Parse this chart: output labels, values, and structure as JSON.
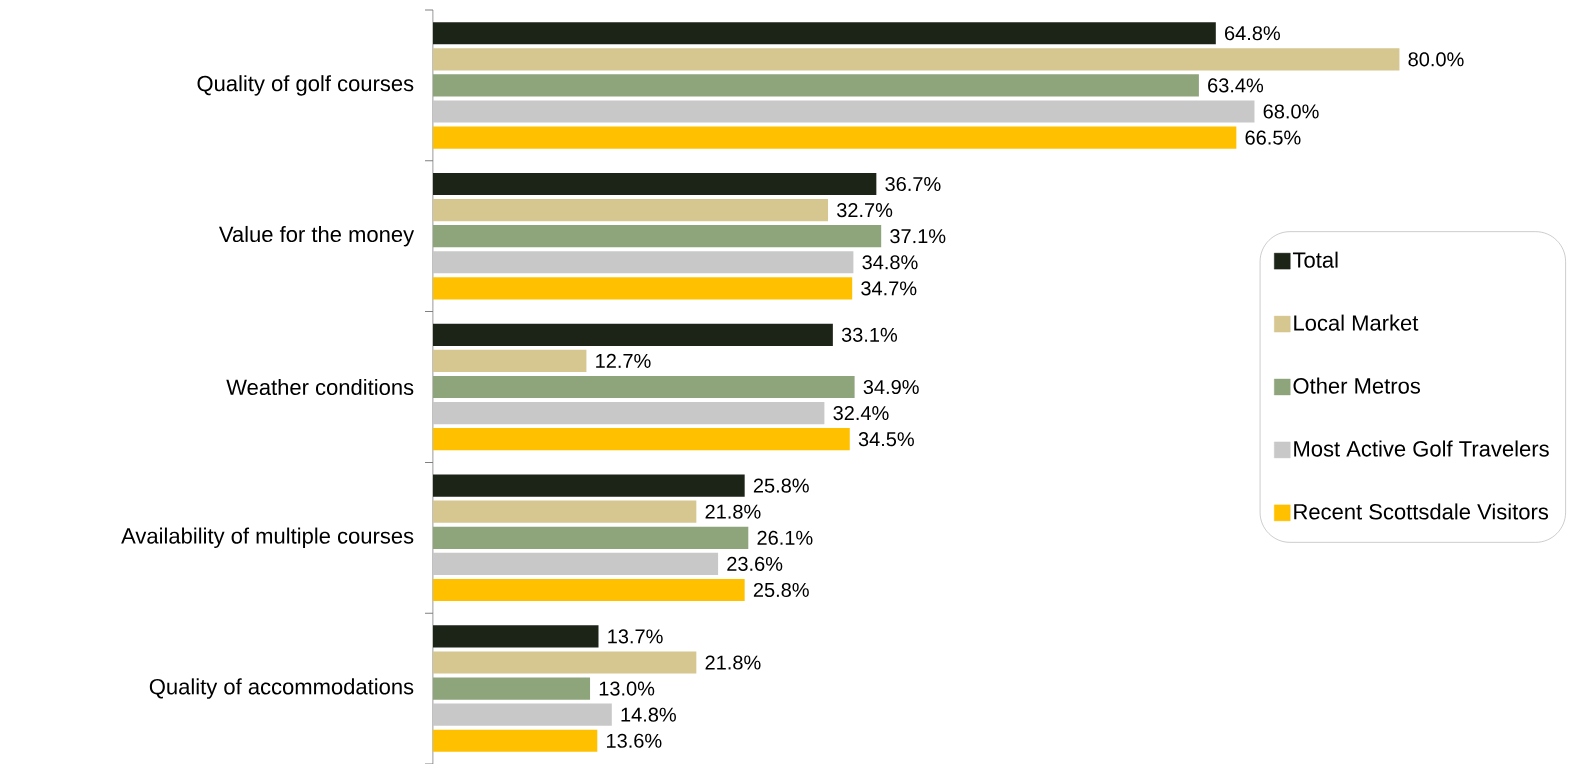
{
  "chart_data": {
    "type": "bar",
    "orientation": "horizontal",
    "legend": "right",
    "data_labels": true,
    "categories": [
      "Quality of golf courses",
      "Value for the money",
      "Weather conditions",
      "Availability of multiple courses",
      "Quality of accommodations"
    ],
    "series": [
      {
        "name": "Total",
        "color": "#1c2418",
        "values": [
          64.8,
          36.7,
          33.1,
          25.8,
          13.7
        ],
        "value_labels": [
          "64.8%",
          "36.7%",
          "33.1%",
          "25.8%",
          "13.7%"
        ]
      },
      {
        "name": "Local Market",
        "color": "#d6c68f",
        "values": [
          80.0,
          32.7,
          12.7,
          21.8,
          21.8
        ],
        "value_labels": [
          "80.0%",
          "32.7%",
          "12.7%",
          "21.8%",
          "21.8%"
        ]
      },
      {
        "name": "Other Metros",
        "color": "#8ea57b",
        "values": [
          63.4,
          37.1,
          34.9,
          26.1,
          13.0
        ],
        "value_labels": [
          "63.4%",
          "37.1%",
          "34.9%",
          "26.1%",
          "13.0%"
        ]
      },
      {
        "name": "Most Active Golf Travelers",
        "color": "#c8c8c8",
        "values": [
          68.0,
          34.8,
          32.4,
          23.6,
          14.8
        ],
        "value_labels": [
          "68.0%",
          "34.8%",
          "32.4%",
          "23.6%",
          "14.8%"
        ]
      },
      {
        "name": "Recent Scottsdale Visitors",
        "color": "#ffc000",
        "values": [
          66.5,
          34.7,
          34.5,
          25.8,
          13.6
        ],
        "value_labels": [
          "66.5%",
          "34.7%",
          "34.5%",
          "25.8%",
          "13.6%"
        ]
      }
    ]
  }
}
